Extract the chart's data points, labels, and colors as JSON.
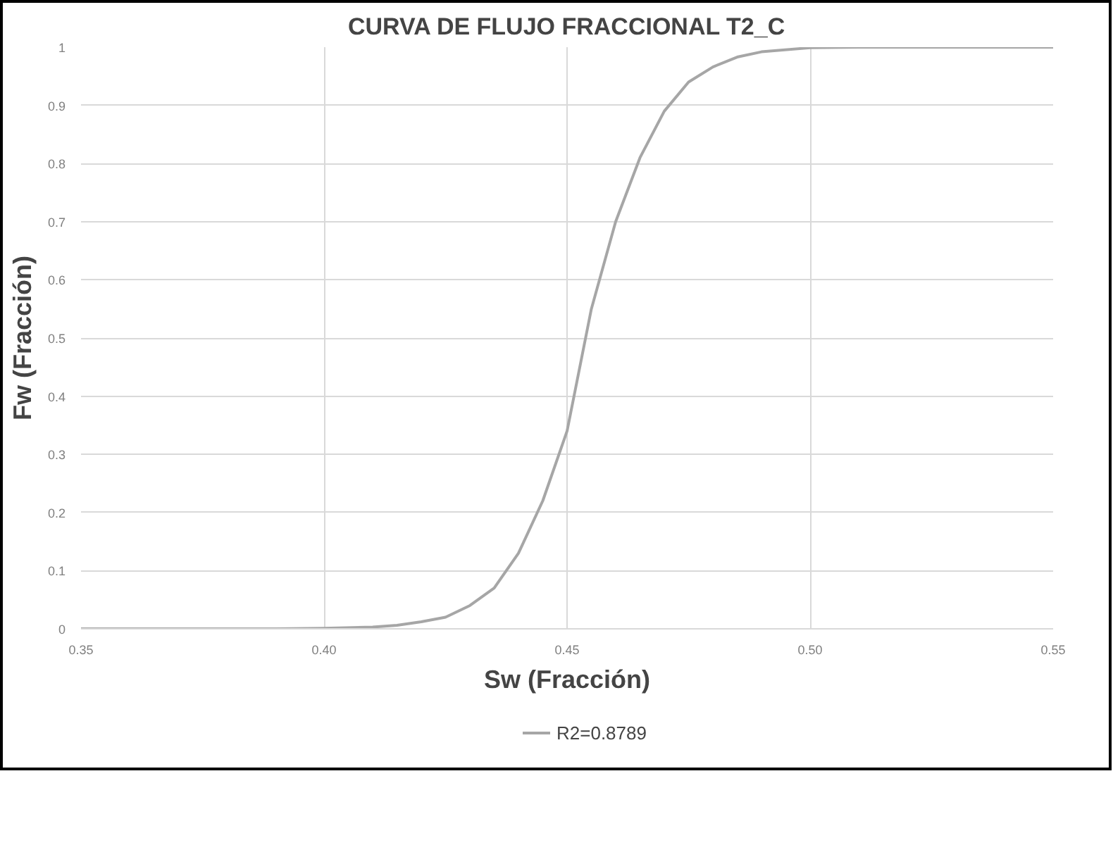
{
  "chart_data": {
    "type": "line",
    "title": "CURVA DE FLUJO FRACCIONAL T2_C",
    "xlabel": "Sw (Fracción)",
    "ylabel": "Fw (Fracción)",
    "xlim": [
      0.35,
      0.55
    ],
    "xticks": [
      {
        "value": 0.35,
        "label": "0.35"
      },
      {
        "value": 0.4,
        "label": "0.40"
      },
      {
        "value": 0.45,
        "label": "0.45"
      },
      {
        "value": 0.5,
        "label": "0.50"
      },
      {
        "value": 0.55,
        "label": "0.55"
      }
    ],
    "ylim": [
      0,
      1
    ],
    "yticks": [
      0,
      0.1,
      0.2,
      0.3,
      0.4,
      0.5,
      0.6,
      0.7,
      0.8,
      0.9,
      1
    ],
    "grid": true,
    "legend": "bottom",
    "marker": "none",
    "line_style": "solid",
    "series": [
      {
        "name": "R2=0.8789",
        "color": "#a6a6a6",
        "x": [
          0.35,
          0.37,
          0.39,
          0.4,
          0.41,
          0.415,
          0.42,
          0.425,
          0.43,
          0.435,
          0.44,
          0.445,
          0.45,
          0.455,
          0.46,
          0.465,
          0.47,
          0.475,
          0.48,
          0.485,
          0.49,
          0.5,
          0.51,
          0.53,
          0.55
        ],
        "values": [
          0,
          0,
          0,
          0.001,
          0.003,
          0.006,
          0.012,
          0.02,
          0.04,
          0.07,
          0.13,
          0.22,
          0.34,
          0.55,
          0.7,
          0.81,
          0.89,
          0.94,
          0.966,
          0.983,
          0.992,
          0.999,
          1,
          1,
          1
        ]
      }
    ]
  }
}
